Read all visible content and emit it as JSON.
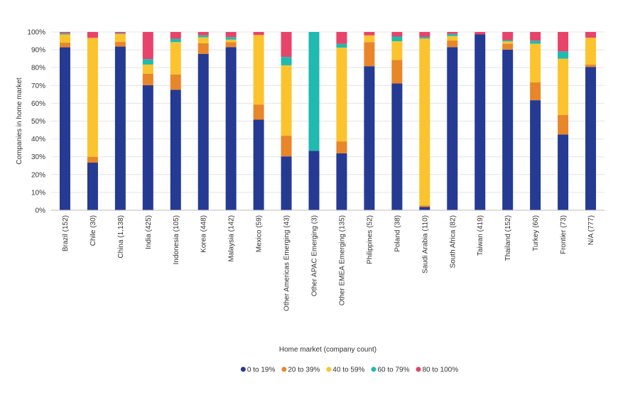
{
  "chart_data": {
    "type": "bar",
    "stacked": true,
    "xlabel": "Home market (company count)",
    "ylabel": "Companies in home market",
    "ylim": [
      0,
      100
    ],
    "yticks": [
      "0%",
      "10%",
      "20%",
      "30%",
      "40%",
      "50%",
      "60%",
      "70%",
      "80%",
      "90%",
      "100%"
    ],
    "grid": true,
    "legend_position": "bottom",
    "categories": [
      "Brazil (152)",
      "Chile (30)",
      "China (1,138)",
      "India (425)",
      "Indonesia (105)",
      "Korea (448)",
      "Malaysia (142)",
      "Mexico (59)",
      "Other Americas Emerging (43)",
      "Other APAC Emerging (3)",
      "Other EMEA Emerging (135)",
      "Philippines (52)",
      "Poland (38)",
      "Saudi Arabia (110)",
      "South Africa (82)",
      "Taiwan (419)",
      "Thailand (152)",
      "Turkey (60)",
      "Frontier (73)",
      "N/A (777)"
    ],
    "series": [
      {
        "name": "0 to 19%",
        "color": "#253a93",
        "values": [
          91.4,
          26.7,
          91.8,
          70.1,
          67.6,
          87.7,
          91.5,
          50.8,
          30.2,
          33.3,
          31.9,
          80.8,
          71.1,
          1.8,
          91.5,
          98.6,
          90.1,
          61.7,
          42.5,
          80.4
        ]
      },
      {
        "name": "20 to 39%",
        "color": "#e8862a",
        "values": [
          2.6,
          3.3,
          2.6,
          6.4,
          8.6,
          6.0,
          2.8,
          8.5,
          11.6,
          0,
          6.7,
          13.5,
          13.2,
          0.9,
          3.7,
          0,
          3.3,
          10.0,
          11.0,
          1.3
        ]
      },
      {
        "name": "40 to 59%",
        "color": "#fbc42e",
        "values": [
          4.6,
          66.7,
          4.5,
          5.2,
          18.1,
          3.3,
          1.4,
          39.0,
          39.5,
          0,
          52.6,
          3.8,
          10.5,
          93.6,
          2.5,
          0,
          1.3,
          21.7,
          31.5,
          15.1
        ]
      },
      {
        "name": "60 to 79%",
        "color": "#1fbab0",
        "values": [
          0.7,
          0,
          0.4,
          3.1,
          1.9,
          1.1,
          1.4,
          0,
          4.7,
          66.7,
          2.2,
          0,
          2.6,
          0.9,
          1.2,
          0,
          0.7,
          1.7,
          4.1,
          0
        ]
      },
      {
        "name": "80 to 100%",
        "color": "#e8436a",
        "values": [
          0.7,
          3.3,
          0.7,
          15.2,
          3.8,
          1.9,
          2.9,
          1.7,
          14.0,
          0,
          6.6,
          1.9,
          2.6,
          2.8,
          1.1,
          1.4,
          4.6,
          4.9,
          10.9,
          3.2
        ]
      }
    ]
  }
}
